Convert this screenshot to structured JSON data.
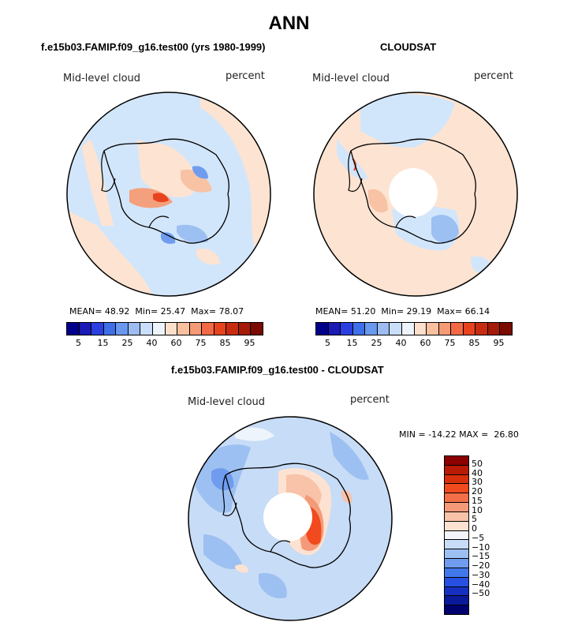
{
  "title": "ANN",
  "panels": [
    {
      "title": "f.e15b03.FAMIP.f09_g16.test00 (yrs 1980-1999)",
      "field": "Mid-level cloud",
      "units": "percent",
      "stats": {
        "mean_label": "MEAN=",
        "mean": "48.92",
        "min_label": "Min=",
        "min": "25.47",
        "max_label": "Max=",
        "max": "78.07"
      }
    },
    {
      "title": "CLOUDSAT",
      "field": "Mid-level cloud",
      "units": "percent",
      "stats": {
        "mean_label": "MEAN=",
        "mean": "51.20",
        "min_label": "Min=",
        "min": "29.19",
        "max_label": "Max=",
        "max": "66.14"
      }
    },
    {
      "title": "f.e15b03.FAMIP.f09_g16.test00 - CLOUDSAT",
      "field": "Mid-level cloud",
      "units": "percent",
      "minmax": "MIN = -14.22 MAX =  26.80"
    }
  ],
  "colorbar_top": {
    "colors": [
      "#00008b",
      "#1a1ab5",
      "#2b3fe0",
      "#3f6fe8",
      "#6a98ee",
      "#9dbdf2",
      "#c9def9",
      "#eef4fc",
      "#fde0cc",
      "#f9c0a0",
      "#f59a75",
      "#f26a45",
      "#e8431f",
      "#c82c10",
      "#a51a08",
      "#7a0a02"
    ],
    "ticks": [
      "5",
      "15",
      "25",
      "40",
      "60",
      "75",
      "85",
      "95"
    ]
  },
  "colorbar_diff": {
    "colors": [
      "#8b0000",
      "#b81a05",
      "#d8300c",
      "#f04a1e",
      "#f26f48",
      "#f59a78",
      "#f8c3a8",
      "#fde2d2",
      "#f2f6fb",
      "#c7dcf6",
      "#9dc0f2",
      "#6f9cee",
      "#4277ea",
      "#2550e2",
      "#1530c0",
      "#0a1a9a",
      "#00006e"
    ],
    "ticks": [
      "50",
      "40",
      "30",
      "20",
      "15",
      "10",
      "5",
      "0",
      "−5",
      "−10",
      "−15",
      "−20",
      "−30",
      "−40",
      "−50"
    ]
  },
  "chart_data": [
    {
      "type": "heatmap",
      "projection": "south polar stereographic",
      "title": "f.e15b03.FAMIP.f09_g16.test00 (yrs 1980-1999)",
      "variable": "Mid-level cloud",
      "units": "percent",
      "mean": 48.92,
      "min": 25.47,
      "max": 78.07,
      "levels": [
        5,
        10,
        15,
        20,
        25,
        30,
        35,
        40,
        45,
        50,
        55,
        60,
        65,
        70,
        75,
        80,
        85,
        90,
        95
      ]
    },
    {
      "type": "heatmap",
      "projection": "south polar stereographic",
      "title": "CLOUDSAT",
      "variable": "Mid-level cloud",
      "units": "percent",
      "mean": 51.2,
      "min": 29.19,
      "max": 66.14,
      "levels": [
        5,
        10,
        15,
        20,
        25,
        30,
        35,
        40,
        45,
        50,
        55,
        60,
        65,
        70,
        75,
        80,
        85,
        90,
        95
      ]
    },
    {
      "type": "heatmap",
      "projection": "south polar stereographic",
      "title": "f.e15b03.FAMIP.f09_g16.test00 - CLOUDSAT",
      "variable": "Mid-level cloud",
      "units": "percent",
      "min": -14.22,
      "max": 26.8,
      "levels": [
        -50,
        -40,
        -30,
        -20,
        -15,
        -10,
        -5,
        0,
        5,
        10,
        15,
        20,
        30,
        40,
        50
      ]
    }
  ]
}
